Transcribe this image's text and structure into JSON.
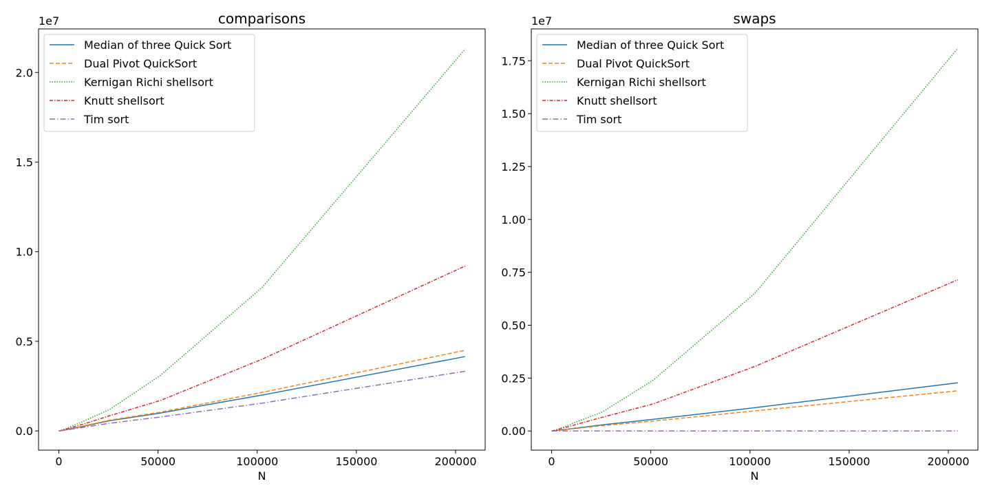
{
  "chart_data": [
    {
      "type": "line",
      "title": "comparisons",
      "xlabel": "N",
      "ylabel": "",
      "y_offset_label": "1e7",
      "xlim": [
        -10240,
        214912
      ],
      "ylim": [
        -1070000,
        22430000
      ],
      "x_ticks": [
        0,
        50000,
        100000,
        150000,
        200000
      ],
      "x_tick_labels": [
        "0",
        "50000",
        "100000",
        "150000",
        "200000"
      ],
      "y_ticks": [
        0,
        5000000,
        10000000,
        15000000,
        20000000
      ],
      "y_tick_labels": [
        "0.0",
        "0.5",
        "1.0",
        "1.5",
        "2.0"
      ],
      "legend_position": "upper-left",
      "x": [
        0,
        800,
        1600,
        3200,
        6400,
        12800,
        25600,
        51200,
        102400,
        204800
      ],
      "series": [
        {
          "name": "Median of three Quick Sort",
          "color": "#1f77b4",
          "dash": "",
          "values": [
            0,
            13000,
            28000,
            60000,
            128000,
            270000,
            570000,
            1000000,
            2000000,
            4150000
          ]
        },
        {
          "name": "Dual Pivot QuickSort",
          "color": "#ff7f0e",
          "dash": "6,3",
          "values": [
            0,
            14000,
            30000,
            64000,
            138000,
            290000,
            600000,
            1050000,
            2150000,
            4500000
          ]
        },
        {
          "name": "Kernigan Richi shellsort",
          "color": "#2ca02c",
          "dash": "1.5,2",
          "values": [
            0,
            22000,
            50000,
            115000,
            260000,
            560000,
            1200000,
            3100000,
            8000000,
            21300000
          ]
        },
        {
          "name": "Knutt shellsort",
          "color": "#d62728",
          "dash": "5,2,1.5,2",
          "values": [
            0,
            17000,
            38000,
            85000,
            190000,
            400000,
            850000,
            1700000,
            4000000,
            9200000
          ]
        },
        {
          "name": "Tim sort",
          "color": "#9467bd",
          "dash": "8,3,1.5,3",
          "values": [
            0,
            10000,
            22000,
            48000,
            100000,
            210000,
            430000,
            780000,
            1550000,
            3330000
          ]
        }
      ]
    },
    {
      "type": "line",
      "title": "swaps",
      "xlabel": "N",
      "ylabel": "",
      "y_offset_label": "1e7",
      "xlim": [
        -10240,
        214912
      ],
      "ylim": [
        -905000,
        19005000
      ],
      "x_ticks": [
        0,
        50000,
        100000,
        150000,
        200000
      ],
      "x_tick_labels": [
        "0",
        "50000",
        "100000",
        "150000",
        "200000"
      ],
      "y_ticks": [
        0,
        2500000,
        5000000,
        7500000,
        10000000,
        12500000,
        15000000,
        17500000
      ],
      "y_tick_labels": [
        "0.00",
        "0.25",
        "0.50",
        "0.75",
        "1.00",
        "1.25",
        "1.50",
        "1.75"
      ],
      "legend_position": "upper-left",
      "x": [
        0,
        800,
        1600,
        3200,
        6400,
        12800,
        25600,
        51200,
        102400,
        204800
      ],
      "series": [
        {
          "name": "Median of three Quick Sort",
          "color": "#1f77b4",
          "dash": "",
          "values": [
            0,
            7000,
            15000,
            32000,
            68000,
            140000,
            290000,
            550000,
            1100000,
            2280000
          ]
        },
        {
          "name": "Dual Pivot QuickSort",
          "color": "#ff7f0e",
          "dash": "6,3",
          "values": [
            0,
            6000,
            13000,
            28000,
            60000,
            125000,
            250000,
            470000,
            950000,
            1900000
          ]
        },
        {
          "name": "Kernigan Richi shellsort",
          "color": "#2ca02c",
          "dash": "1.5,2",
          "values": [
            0,
            18000,
            40000,
            90000,
            200000,
            440000,
            900000,
            2400000,
            6500000,
            18100000
          ]
        },
        {
          "name": "Knutt shellsort",
          "color": "#d62728",
          "dash": "5,2,1.5,2",
          "values": [
            0,
            14000,
            31000,
            70000,
            150000,
            320000,
            650000,
            1280000,
            3050000,
            7150000
          ]
        },
        {
          "name": "Tim sort",
          "color": "#9467bd",
          "dash": "8,3,1.5,3",
          "values": [
            0,
            0,
            0,
            0,
            0,
            0,
            0,
            0,
            0,
            0
          ]
        }
      ]
    }
  ]
}
